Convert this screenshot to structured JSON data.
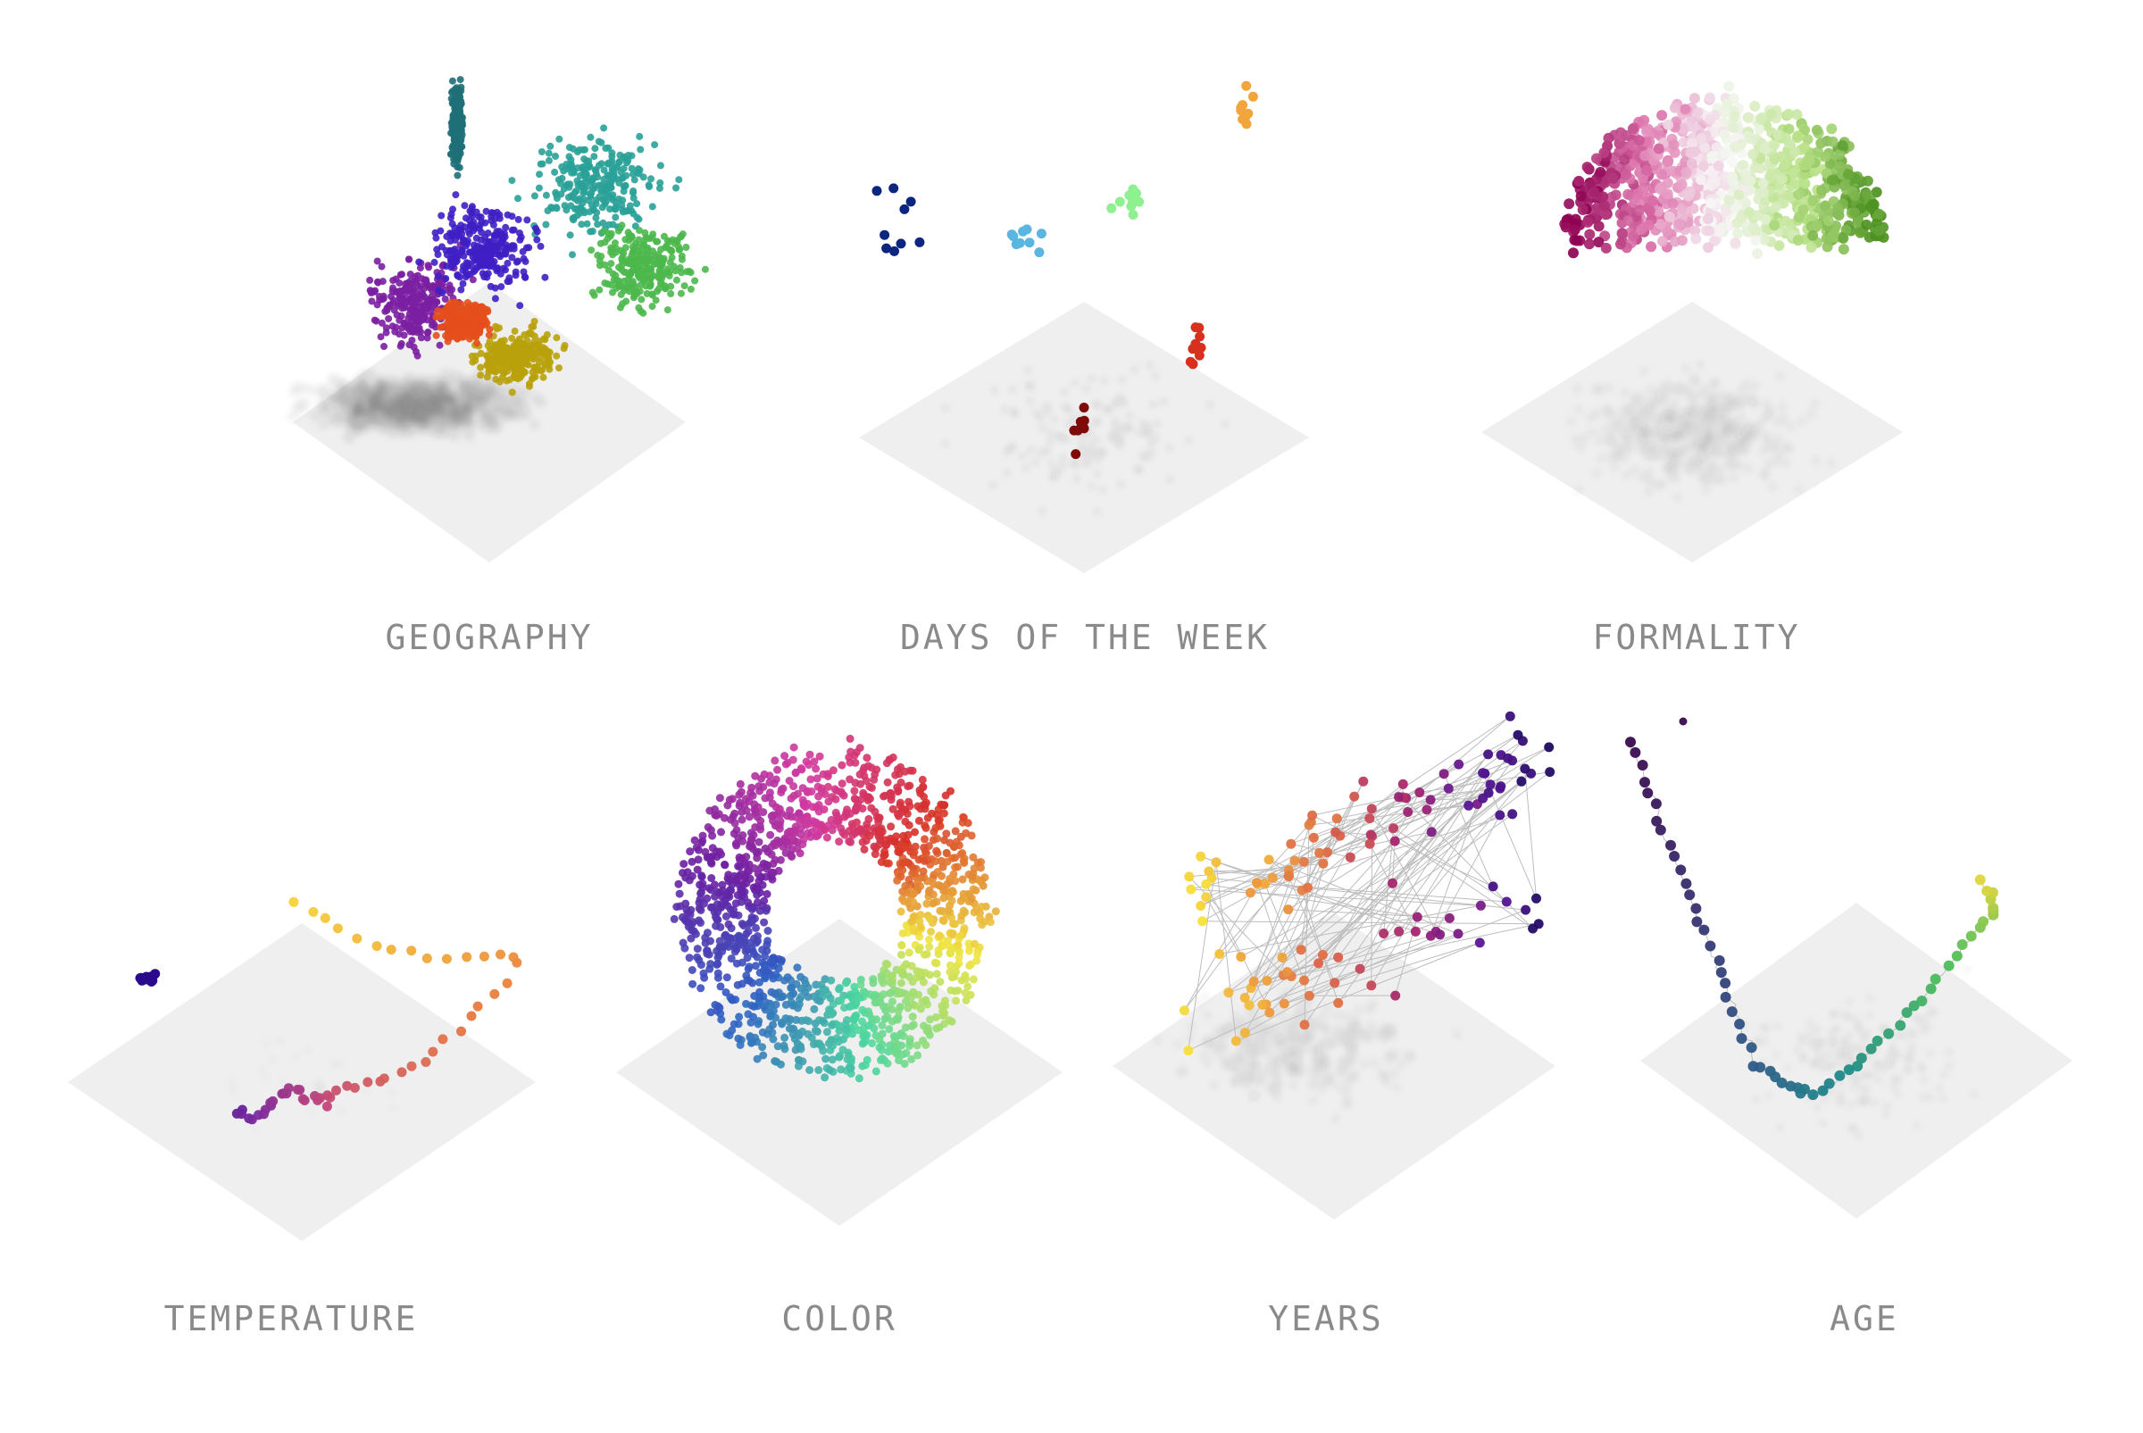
{
  "panels": [
    {
      "id": "geography",
      "label": "GEOGRAPHY",
      "kind": "clusters",
      "palette": [
        "#1f6f78",
        "#2aa198",
        "#4cb84c",
        "#7b1fa2",
        "#3f1fc4",
        "#b8a10b",
        "#e44f1c"
      ]
    },
    {
      "id": "days",
      "label": "DAYS OF THE WEEK",
      "kind": "groups",
      "palette": [
        "#0c2580",
        "#5ab5e0",
        "#8ef08e",
        "#f2a53a",
        "#d7301f",
        "#7f0a0a"
      ]
    },
    {
      "id": "formality",
      "label": "FORMALITY",
      "kind": "blob",
      "palette": [
        "#8e0152",
        "#de77ae",
        "#f7f7f7",
        "#b8e186",
        "#4d9221"
      ]
    },
    {
      "id": "temperature",
      "label": "TEMPERATURE",
      "kind": "curve",
      "palette": [
        "#2b0a8c",
        "#7b2a9e",
        "#c1467a",
        "#ea7d3c",
        "#f5d53a"
      ]
    },
    {
      "id": "color",
      "label": "COLOR",
      "kind": "ring",
      "palette": [
        "#d73027",
        "#f0e442",
        "#4cd6a0",
        "#2f5ec4",
        "#6a1fa2",
        "#d13aa0"
      ]
    },
    {
      "id": "years",
      "label": "YEARS",
      "kind": "grid",
      "palette": [
        "#f5e23a",
        "#f0a23a",
        "#d9604a",
        "#a6256e",
        "#5a1697",
        "#1c0a5e"
      ]
    },
    {
      "id": "age",
      "label": "AGE",
      "kind": "hook",
      "palette": [
        "#3b0a4f",
        "#38306f",
        "#2e5a87",
        "#1f8a8a",
        "#4dbe5a",
        "#e6d63a"
      ]
    }
  ]
}
